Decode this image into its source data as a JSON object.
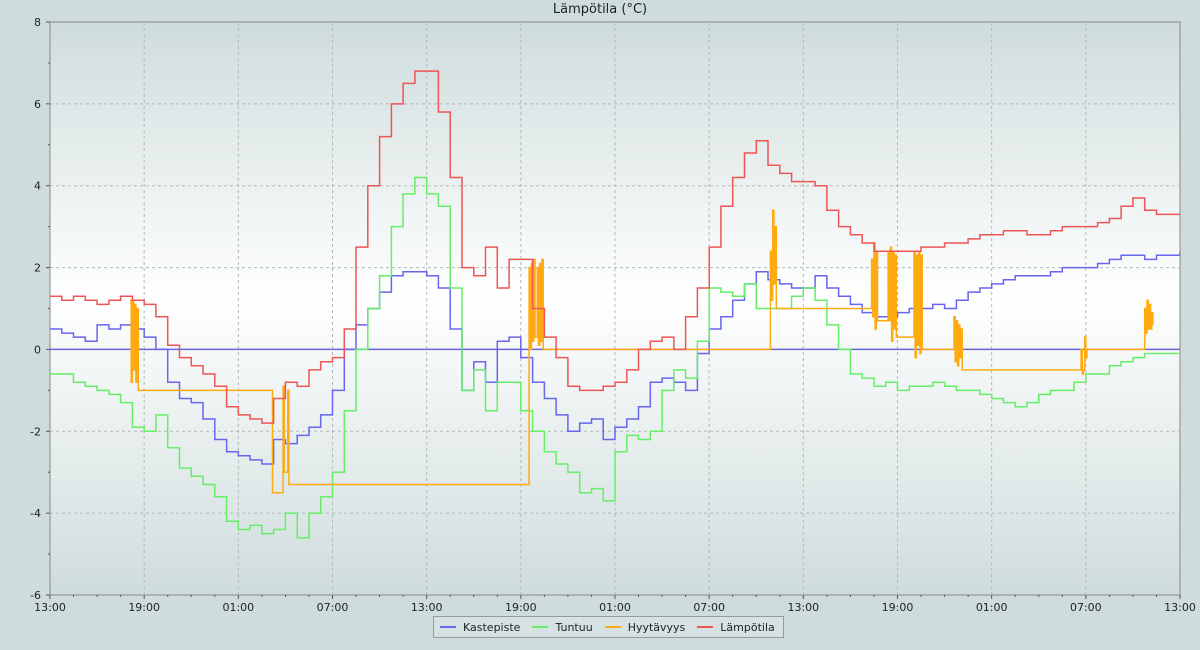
{
  "chart_data": {
    "type": "line",
    "title": "Lämpötila (°C)",
    "xlabel": "",
    "ylabel": "",
    "ylim": [
      -6,
      8
    ],
    "y_ticks": [
      -6,
      -4,
      -2,
      0,
      2,
      4,
      6,
      8
    ],
    "x_range_hours": [
      0,
      48
    ],
    "x_ticks": [
      {
        "h": 0,
        "label": "13:00"
      },
      {
        "h": 4,
        "label": "19:00"
      },
      {
        "h": 8,
        "label": "01:00"
      },
      {
        "h": 12,
        "label": "07:00"
      },
      {
        "h": 16,
        "label": "13:00"
      },
      {
        "h": 20,
        "label": "19:00"
      },
      {
        "h": 24,
        "label": "01:00"
      },
      {
        "h": 28,
        "label": "07:00"
      },
      {
        "h": 32,
        "label": "13:00"
      },
      {
        "h": 36,
        "label": "19:00"
      },
      {
        "h": 40,
        "label": "01:00"
      },
      {
        "h": 44,
        "label": "07:00"
      },
      {
        "h": 48,
        "label": "13:00"
      }
    ],
    "x_unit": "hours since first 13:00 tick",
    "grid": true,
    "legend_position": "bottom-center",
    "zero_line_color": "#6666dd",
    "series": [
      {
        "name": "Kastepiste",
        "color": "#6666ee",
        "x": [
          0,
          0.5,
          1,
          1.5,
          2,
          2.5,
          3,
          3.5,
          4,
          4.5,
          5,
          5.5,
          6,
          6.5,
          7,
          7.5,
          8,
          8.5,
          9,
          9.5,
          10,
          10.5,
          11,
          11.5,
          12,
          12.5,
          13,
          13.5,
          14,
          14.5,
          15,
          15.5,
          16,
          16.5,
          17,
          17.5,
          18,
          18.5,
          19,
          19.5,
          20,
          20.5,
          21,
          21.5,
          22,
          22.5,
          23,
          23.5,
          24,
          24.5,
          25,
          25.5,
          26,
          26.5,
          27,
          27.5,
          28,
          28.5,
          29,
          29.5,
          30,
          30.5,
          31,
          31.5,
          32,
          32.5,
          33,
          33.5,
          34,
          34.5,
          35,
          35.5,
          36,
          36.5,
          37,
          37.5,
          38,
          38.5,
          39,
          39.5,
          40,
          40.5,
          41,
          41.5,
          42,
          42.5,
          43,
          43.5,
          44,
          44.5,
          45,
          45.5,
          46,
          46.5,
          47,
          47.5,
          48
        ],
        "y": [
          0.5,
          0.4,
          0.3,
          0.2,
          0.6,
          0.5,
          0.6,
          0.5,
          0.3,
          0.0,
          -0.8,
          -1.2,
          -1.3,
          -1.7,
          -2.2,
          -2.5,
          -2.6,
          -2.7,
          -2.8,
          -2.2,
          -2.3,
          -2.1,
          -1.9,
          -1.6,
          -1.0,
          0.0,
          0.6,
          1.0,
          1.4,
          1.8,
          1.9,
          1.9,
          1.8,
          1.5,
          0.5,
          -1.0,
          -0.3,
          -0.8,
          0.2,
          0.3,
          -0.2,
          -0.8,
          -1.2,
          -1.6,
          -2.0,
          -1.8,
          -1.7,
          -2.2,
          -1.9,
          -1.7,
          -1.4,
          -0.8,
          -0.7,
          -0.8,
          -1.0,
          -0.1,
          0.5,
          0.8,
          1.2,
          1.6,
          1.9,
          1.7,
          1.6,
          1.5,
          1.5,
          1.8,
          1.5,
          1.3,
          1.1,
          0.9,
          0.8,
          0.8,
          0.9,
          1.0,
          1.0,
          1.1,
          1.0,
          1.2,
          1.4,
          1.5,
          1.6,
          1.7,
          1.8,
          1.8,
          1.8,
          1.9,
          2.0,
          2.0,
          2.0,
          2.1,
          2.2,
          2.3,
          2.3,
          2.2,
          2.3,
          2.3,
          2.4
        ]
      },
      {
        "name": "Tuntuu",
        "color": "#66ee66",
        "x": [
          0,
          0.5,
          1,
          1.5,
          2,
          2.5,
          3,
          3.5,
          4,
          4.5,
          5,
          5.5,
          6,
          6.5,
          7,
          7.5,
          8,
          8.5,
          9,
          9.5,
          10,
          10.5,
          11,
          11.5,
          12,
          12.5,
          13,
          13.5,
          14,
          14.5,
          15,
          15.5,
          16,
          16.5,
          17,
          17.5,
          18,
          18.5,
          19,
          19.5,
          20,
          20.5,
          21,
          21.5,
          22,
          22.5,
          23,
          23.5,
          24,
          24.5,
          25,
          25.5,
          26,
          26.5,
          27,
          27.5,
          28,
          28.5,
          29,
          29.5,
          30,
          30.5,
          31,
          31.5,
          32,
          32.5,
          33,
          33.5,
          34,
          34.5,
          35,
          35.5,
          36,
          36.5,
          37,
          37.5,
          38,
          38.5,
          39,
          39.5,
          40,
          40.5,
          41,
          41.5,
          42,
          42.5,
          43,
          43.5,
          44,
          44.5,
          45,
          45.5,
          46,
          46.5,
          47,
          47.5,
          48
        ],
        "y": [
          -0.6,
          -0.6,
          -0.8,
          -0.9,
          -1.0,
          -1.1,
          -1.3,
          -1.9,
          -2.0,
          -1.6,
          -2.4,
          -2.9,
          -3.1,
          -3.3,
          -3.6,
          -4.2,
          -4.4,
          -4.3,
          -4.5,
          -4.4,
          -4.0,
          -4.6,
          -4.0,
          -3.6,
          -3.0,
          -1.5,
          0.0,
          1.0,
          1.8,
          3.0,
          3.8,
          4.2,
          3.8,
          3.5,
          1.5,
          -1.0,
          -0.5,
          -1.5,
          -0.8,
          -0.8,
          -1.5,
          -2.0,
          -2.5,
          -2.8,
          -3.0,
          -3.5,
          -3.4,
          -3.7,
          -2.5,
          -2.1,
          -2.2,
          -2.0,
          -1.0,
          -0.5,
          -0.7,
          0.2,
          1.5,
          1.4,
          1.3,
          1.6,
          1.0,
          1.0,
          1.0,
          1.3,
          1.5,
          1.2,
          0.6,
          0.0,
          -0.6,
          -0.7,
          -0.9,
          -0.8,
          -1.0,
          -0.9,
          -0.9,
          -0.8,
          -0.9,
          -1.0,
          -1.0,
          -1.1,
          -1.2,
          -1.3,
          -1.4,
          -1.3,
          -1.1,
          -1.0,
          -1.0,
          -0.8,
          -0.6,
          -0.6,
          -0.4,
          -0.3,
          -0.2,
          -0.1,
          -0.1,
          -0.1,
          -0.2
        ]
      },
      {
        "name": "Hyytävyys",
        "color": "#ffaa11",
        "x": [
          3.4,
          3.45,
          3.5,
          3.55,
          3.6,
          3.65,
          3.7,
          3.75,
          9.4,
          9.45,
          9.9,
          9.95,
          10.1,
          10.15,
          20.35,
          20.4,
          20.45,
          20.5,
          20.55,
          20.6,
          20.7,
          20.75,
          20.8,
          20.85,
          20.9,
          20.95,
          30.6,
          30.65,
          30.7,
          30.75,
          30.8,
          30.85,
          34.9,
          34.95,
          35.0,
          35.05,
          35.1,
          35.15,
          35.6,
          35.65,
          35.7,
          35.75,
          35.8,
          35.85,
          35.9,
          35.95,
          36.7,
          36.75,
          36.8,
          36.85,
          36.9,
          36.95,
          37.0,
          37.05,
          38.4,
          38.45,
          38.5,
          38.55,
          38.6,
          38.65,
          38.7,
          38.75,
          43.8,
          43.85,
          43.9,
          43.95,
          44.0,
          44.05,
          46.5,
          46.55,
          46.6,
          46.65,
          46.7,
          46.75,
          46.8,
          46.85
        ],
        "y": [
          1.2,
          -0.8,
          1.2,
          -0.5,
          1.1,
          -0.8,
          1.0,
          -1.0,
          -1.0,
          -3.5,
          -0.9,
          -3.0,
          -1.0,
          -3.3,
          2.0,
          0.0,
          2.1,
          0.2,
          2.2,
          0.3,
          2.0,
          0.1,
          2.1,
          0.2,
          2.2,
          0.0,
          2.4,
          1.2,
          3.4,
          1.6,
          3.0,
          1.0,
          2.2,
          0.8,
          2.6,
          0.5,
          2.4,
          0.7,
          2.4,
          0.7,
          2.5,
          0.2,
          2.4,
          0.5,
          2.3,
          0.3,
          2.4,
          -0.2,
          2.3,
          0.1,
          2.4,
          -0.1,
          2.3,
          0.0,
          0.8,
          -0.3,
          0.7,
          -0.4,
          0.6,
          -0.2,
          0.5,
          -0.5,
          0.0,
          -0.6,
          -0.5,
          0.3,
          -0.2,
          0.0,
          1.0,
          0.4,
          1.2,
          0.5,
          1.1,
          0.5,
          0.9,
          0.6
        ]
      },
      {
        "name": "Lämpötila",
        "color": "#ee5555",
        "x": [
          0,
          0.5,
          1,
          1.5,
          2,
          2.5,
          3,
          3.5,
          4,
          4.5,
          5,
          5.5,
          6,
          6.5,
          7,
          7.5,
          8,
          8.5,
          9,
          9.5,
          10,
          10.5,
          11,
          11.5,
          12,
          12.5,
          13,
          13.5,
          14,
          14.5,
          15,
          15.5,
          16,
          16.5,
          17,
          17.5,
          18,
          18.5,
          19,
          19.5,
          20,
          20.5,
          21,
          21.5,
          22,
          22.5,
          23,
          23.5,
          24,
          24.5,
          25,
          25.5,
          26,
          26.5,
          27,
          27.5,
          28,
          28.5,
          29,
          29.5,
          30,
          30.5,
          31,
          31.5,
          32,
          32.5,
          33,
          33.5,
          34,
          34.5,
          35,
          35.5,
          36,
          36.5,
          37,
          37.5,
          38,
          38.5,
          39,
          39.5,
          40,
          40.5,
          41,
          41.5,
          42,
          42.5,
          43,
          43.5,
          44,
          44.5,
          45,
          45.5,
          46,
          46.5,
          47,
          47.5,
          48
        ],
        "y": [
          1.3,
          1.2,
          1.3,
          1.2,
          1.1,
          1.2,
          1.3,
          1.2,
          1.1,
          0.8,
          0.1,
          -0.2,
          -0.4,
          -0.6,
          -0.9,
          -1.4,
          -1.6,
          -1.7,
          -1.8,
          -1.2,
          -0.8,
          -0.9,
          -0.5,
          -0.3,
          -0.2,
          0.5,
          2.5,
          4.0,
          5.2,
          6.0,
          6.5,
          6.8,
          6.8,
          5.8,
          4.2,
          2.0,
          1.8,
          2.5,
          1.5,
          2.2,
          2.2,
          1.0,
          0.3,
          -0.2,
          -0.9,
          -1.0,
          -1.0,
          -0.9,
          -0.8,
          -0.5,
          0.0,
          0.2,
          0.3,
          0.0,
          0.8,
          1.5,
          2.5,
          3.5,
          4.2,
          4.8,
          5.1,
          4.5,
          4.3,
          4.1,
          4.1,
          4.0,
          3.4,
          3.0,
          2.8,
          2.6,
          2.4,
          2.4,
          2.4,
          2.4,
          2.5,
          2.5,
          2.6,
          2.6,
          2.7,
          2.8,
          2.8,
          2.9,
          2.9,
          2.8,
          2.8,
          2.9,
          3.0,
          3.0,
          3.0,
          3.1,
          3.2,
          3.5,
          3.7,
          3.4,
          3.3,
          3.3,
          3.3
        ]
      }
    ]
  }
}
